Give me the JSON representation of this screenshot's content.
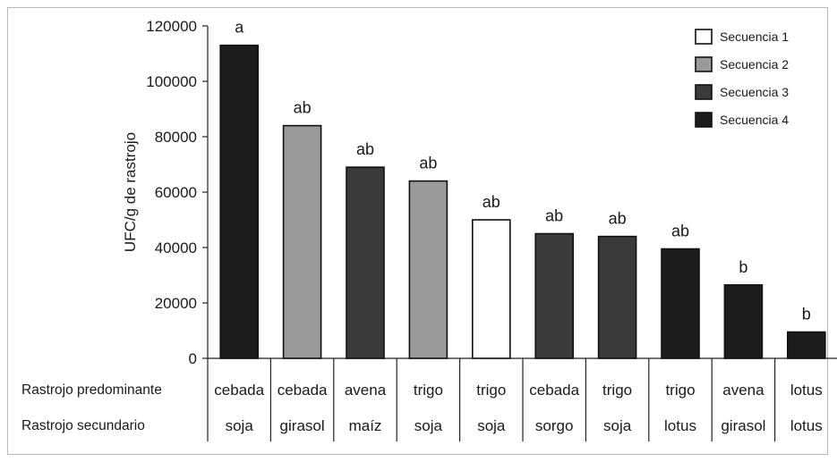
{
  "chart_data": {
    "type": "bar",
    "ylabel": "UFC/g de rastrojo",
    "ylim": [
      0,
      120000
    ],
    "yticks": [
      0,
      20000,
      40000,
      60000,
      80000,
      100000,
      120000
    ],
    "grid": false,
    "legend_position": "top-right",
    "colors": {
      "Secuencia 1": "#ffffff",
      "Secuencia 2": "#9a9a9a",
      "Secuencia 3": "#3a3a3a",
      "Secuencia 4": "#1c1c1c"
    },
    "legend": [
      "Secuencia 1",
      "Secuencia 2",
      "Secuencia 3",
      "Secuencia 4"
    ],
    "row_labels": {
      "primary": "Rastrojo predominante",
      "secondary": "Rastrojo secundario"
    },
    "bars": [
      {
        "primary": "cebada",
        "secondary": "soja",
        "value": 113000,
        "letter": "a",
        "series": "Secuencia 4"
      },
      {
        "primary": "cebada",
        "secondary": "girasol",
        "value": 84000,
        "letter": "ab",
        "series": "Secuencia 2"
      },
      {
        "primary": "avena",
        "secondary": "maíz",
        "value": 69000,
        "letter": "ab",
        "series": "Secuencia 3"
      },
      {
        "primary": "trigo",
        "secondary": "soja",
        "value": 64000,
        "letter": "ab",
        "series": "Secuencia 2"
      },
      {
        "primary": "trigo",
        "secondary": "soja",
        "value": 50000,
        "letter": "ab",
        "series": "Secuencia 1"
      },
      {
        "primary": "cebada",
        "secondary": "sorgo",
        "value": 45000,
        "letter": "ab",
        "series": "Secuencia 3"
      },
      {
        "primary": "trigo",
        "secondary": "soja",
        "value": 44000,
        "letter": "ab",
        "series": "Secuencia 3"
      },
      {
        "primary": "trigo",
        "secondary": "lotus",
        "value": 39500,
        "letter": "ab",
        "series": "Secuencia 4"
      },
      {
        "primary": "avena",
        "secondary": "girasol",
        "value": 26500,
        "letter": "b",
        "series": "Secuencia 4"
      },
      {
        "primary": "lotus",
        "secondary": "lotus",
        "value": 9500,
        "letter": "b",
        "series": "Secuencia 4"
      }
    ]
  }
}
